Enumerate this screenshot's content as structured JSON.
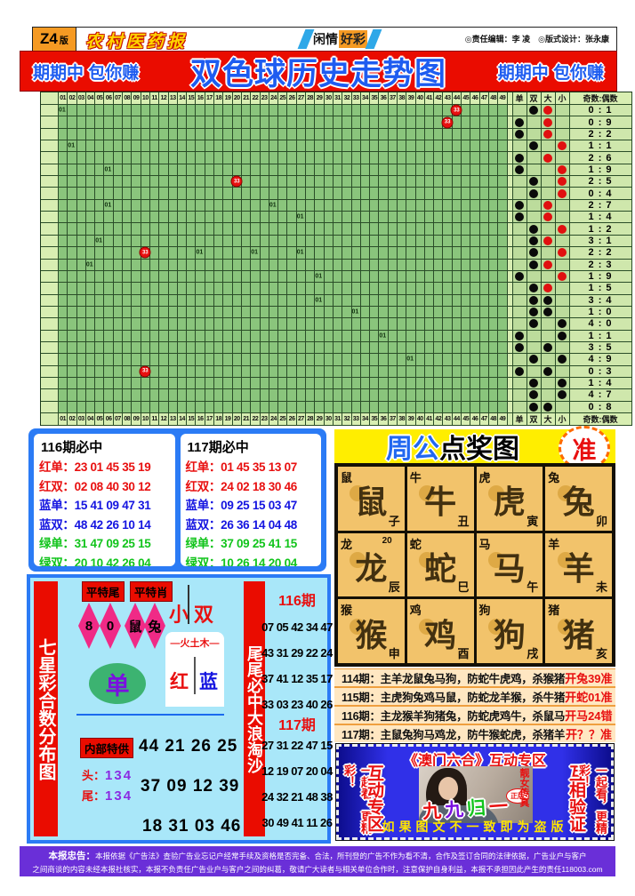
{
  "masthead": {
    "edition": "Z4",
    "edition_suffix": "版",
    "paper_name": "农村医药报",
    "column_tag_left": "闲情",
    "column_tag_right": "好彩",
    "credits": "◎责任编辑：李 凌　◎版式设计：张永康"
  },
  "banner": {
    "left": "期期中 包你赚",
    "title": "双色球历史走势图",
    "right": "期期中 包你赚"
  },
  "chart_data": {
    "type": "table",
    "title": "双色球历史走势图",
    "columns": [
      "01",
      "02",
      "03",
      "04",
      "05",
      "06",
      "07",
      "08",
      "09",
      "10",
      "11",
      "12",
      "13",
      "14",
      "15",
      "16",
      "17",
      "18",
      "19",
      "20",
      "21",
      "22",
      "23",
      "24",
      "25",
      "26",
      "27",
      "28",
      "29",
      "30",
      "31",
      "32",
      "33",
      "34",
      "35",
      "36",
      "37",
      "38",
      "39",
      "40",
      "41",
      "42",
      "43",
      "44",
      "45",
      "46",
      "47",
      "48",
      "49"
    ],
    "right_headers": [
      "单",
      "双",
      "大",
      "小"
    ],
    "ratio_header": "奇数:偶数",
    "ball_label": "33",
    "mark_label": "01",
    "rows": [
      {
        "ratio": "0:1",
        "parity": "双",
        "size": "大",
        "size_color": "red",
        "marks": [
          1
        ],
        "balls": [
          44
        ]
      },
      {
        "ratio": "0:9",
        "parity": "单",
        "size": "大",
        "size_color": "red",
        "marks": [],
        "balls": [
          43
        ]
      },
      {
        "ratio": "2:2",
        "parity": "单",
        "size": "大",
        "size_color": "red",
        "marks": [],
        "balls": []
      },
      {
        "ratio": "1:1",
        "parity": "双",
        "size": "小",
        "size_color": "red",
        "marks": [
          2
        ],
        "balls": []
      },
      {
        "ratio": "2:6",
        "parity": "单",
        "size": "大",
        "size_color": "red",
        "marks": [],
        "balls": []
      },
      {
        "ratio": "1:9",
        "parity": "单",
        "size": "小",
        "size_color": "red",
        "marks": [
          6
        ],
        "balls": []
      },
      {
        "ratio": "2:5",
        "parity": "双",
        "size": "小",
        "size_color": "red",
        "marks": [],
        "balls": [
          20
        ]
      },
      {
        "ratio": "0:4",
        "parity": "双",
        "size": "小",
        "size_color": "red",
        "marks": [],
        "balls": []
      },
      {
        "ratio": "2:7",
        "parity": "单",
        "size": "大",
        "size_color": "red",
        "marks": [
          6,
          24
        ],
        "balls": []
      },
      {
        "ratio": "1:4",
        "parity": "单",
        "size": "大",
        "size_color": "red",
        "marks": [
          27
        ],
        "balls": []
      },
      {
        "ratio": "1:2",
        "parity": "双",
        "size": "小",
        "size_color": "red",
        "marks": [],
        "balls": []
      },
      {
        "ratio": "3:1",
        "parity": "双",
        "size": "大",
        "size_color": "red",
        "marks": [
          5
        ],
        "balls": []
      },
      {
        "ratio": "2:2",
        "parity": "双",
        "size": "小",
        "size_color": "red",
        "marks": [
          16,
          22,
          27
        ],
        "balls": [
          10
        ]
      },
      {
        "ratio": "2:3",
        "parity": "双",
        "size": "大",
        "size_color": "red",
        "marks": [
          4
        ],
        "balls": []
      },
      {
        "ratio": "1:9",
        "parity": "单",
        "size": "小",
        "size_color": "red",
        "marks": [
          29
        ],
        "balls": []
      },
      {
        "ratio": "1:5",
        "parity": "双",
        "size": "大",
        "size_color": "red",
        "marks": [],
        "balls": []
      },
      {
        "ratio": "3:4",
        "parity": "双",
        "size": "大",
        "size_color": "black",
        "marks": [
          29
        ],
        "balls": []
      },
      {
        "ratio": "1:0",
        "parity": "双",
        "size": "大",
        "size_color": "black",
        "marks": [
          33
        ],
        "balls": []
      },
      {
        "ratio": "4:0",
        "parity": "双",
        "size": "小",
        "size_color": "black",
        "marks": [],
        "balls": []
      },
      {
        "ratio": "1:1",
        "parity": "单",
        "size": "小",
        "size_color": "black",
        "marks": [
          36
        ],
        "balls": []
      },
      {
        "ratio": "3:5",
        "parity": "单",
        "size": "大",
        "size_color": "black",
        "marks": [],
        "balls": []
      },
      {
        "ratio": "4:9",
        "parity": "双",
        "size": "小",
        "size_color": "black",
        "marks": [
          39
        ],
        "balls": []
      },
      {
        "ratio": "0:3",
        "parity": "单",
        "size": "大",
        "size_color": "black",
        "marks": [],
        "balls": [
          10
        ]
      },
      {
        "ratio": "1:4",
        "parity": "双",
        "size": "小",
        "size_color": "black",
        "marks": [],
        "balls": []
      },
      {
        "ratio": "4:7",
        "parity": "双",
        "size": "小",
        "size_color": "black",
        "marks": [],
        "balls": []
      },
      {
        "ratio": "0:8",
        "parity": "双",
        "size": "大",
        "size_color": "black",
        "marks": [],
        "balls": []
      }
    ]
  },
  "predictions": {
    "boxes": [
      {
        "title": "116期必中",
        "rows": [
          {
            "label": "红单：",
            "value": "23 01 45 35 19",
            "color": "red"
          },
          {
            "label": "红双：",
            "value": "02 08 40 30 12",
            "color": "red"
          },
          {
            "label": "蓝单：",
            "value": "15 41 09 47 31",
            "color": "blue"
          },
          {
            "label": "蓝双：",
            "value": "48 42 26 10 14",
            "color": "blue"
          },
          {
            "label": "绿单：",
            "value": "31 47 09 25 15",
            "color": "green"
          },
          {
            "label": "绿双：",
            "value": "20 10 42 26 04",
            "color": "green"
          }
        ]
      },
      {
        "title": "117期必中",
        "rows": [
          {
            "label": "红单：",
            "value": "01 45 35 13 07",
            "color": "red"
          },
          {
            "label": "红双：",
            "value": "24 02 18 30 46",
            "color": "red"
          },
          {
            "label": "蓝单：",
            "value": "09 25 15 03 47",
            "color": "blue"
          },
          {
            "label": "蓝双：",
            "value": "26 36 14 04 48",
            "color": "blue"
          },
          {
            "label": "绿单：",
            "value": "37 09 25 41 15",
            "color": "green"
          },
          {
            "label": "绿双：",
            "value": "10 26 14 20 04",
            "color": "green"
          }
        ]
      }
    ]
  },
  "zhougong": {
    "title_blue": "周公",
    "title_red": "点奖图",
    "badge": "准",
    "cells": [
      {
        "animal": "鼠",
        "branch": "子"
      },
      {
        "animal": "牛",
        "branch": "丑"
      },
      {
        "animal": "虎",
        "branch": "寅"
      },
      {
        "animal": "兔",
        "branch": "卯"
      },
      {
        "animal": "龙",
        "branch": "辰",
        "note": "20"
      },
      {
        "animal": "蛇",
        "branch": "巳"
      },
      {
        "animal": "马",
        "branch": "午"
      },
      {
        "animal": "羊",
        "branch": "未"
      },
      {
        "animal": "猴",
        "branch": "申"
      },
      {
        "animal": "鸡",
        "branch": "酉"
      },
      {
        "animal": "狗",
        "branch": "戌"
      },
      {
        "animal": "猪",
        "branch": "亥"
      }
    ],
    "forecasts": [
      {
        "text": "114期：主羊龙鼠兔马狗，防蛇牛虎鸡，杀猴猪",
        "result": "开兔39准"
      },
      {
        "text": "115期：主虎狗兔鸡马鼠，防蛇龙羊猴，杀牛猪",
        "result": "开蛇01准"
      },
      {
        "text": "116期：主龙猴羊狗猪兔，防蛇虎鸡牛，杀鼠马",
        "result": "开马24错"
      },
      {
        "text": "117期：主鼠兔狗马鸡龙，防牛猴蛇虎，杀猪羊",
        "result": "开？？准"
      }
    ]
  },
  "qixingcai": {
    "side_title": "七星彩合数分布图",
    "tag1": "平特尾",
    "tag2": "平特肖",
    "diamonds": [
      "8",
      "0",
      "鼠",
      "兔"
    ],
    "xiao": "小",
    "shuang": "双",
    "wuxing": "火土木",
    "hong": "红",
    "lan": "蓝",
    "dan": "单",
    "neibu_label": "内部特供",
    "numbers1": "44 21 26 25",
    "tou_label": "头：",
    "tou_value": "134",
    "wei_label": "尾：",
    "wei_value": "134",
    "numbers2": "37 09 12 39",
    "numbers3": "18 31 03 46"
  },
  "weiwei": {
    "side_title": "尾尾必中大浪淘沙",
    "period1": "116期",
    "rows1": [
      "07 05 42 34 47",
      "43 31 29 22 24",
      "37 41 12 35 17",
      "33 03 23 40 26"
    ],
    "period2": "117期",
    "rows2": [
      "27 31 22 47 15",
      "12 19 07 20 04",
      "24 32 21 48 38",
      "30 49 41 11 26"
    ]
  },
  "macau": {
    "title": "《澳门六合》互动专区",
    "left_outer": "一起看，更精彩！",
    "left_inner": "互动专区",
    "right_inner": "互相验证",
    "right_outer": "一起看，更精彩！",
    "logo_chars": [
      {
        "ch": "九",
        "color": "#e81010"
      },
      {
        "ch": "九",
        "color": "#7a10e0"
      },
      {
        "ch": "归",
        "color": "#12c41c"
      },
      {
        "ch": "一",
        "color": "#e81010"
      }
    ],
    "stamp": "正版",
    "photo_caption": "靓女传真",
    "bottom_note": "如果图文不一致即为盗版"
  },
  "footer": {
    "notice_label": "本报忠告：",
    "line1": "本报依据《广告法》查验广告业忘记户经常手续及资格是否完备、合法，所刊登的广告不作为看不清，合作及签订合同的法律依据，广告业户与客户",
    "line2": "之间商谈的内容未经本报社核实，本报不负责任广告业户与客户之间的纠葛，敬请广大读者与相关单位合作时，注意保护自身利益，本报不承担因此产生的责任118003.com"
  }
}
